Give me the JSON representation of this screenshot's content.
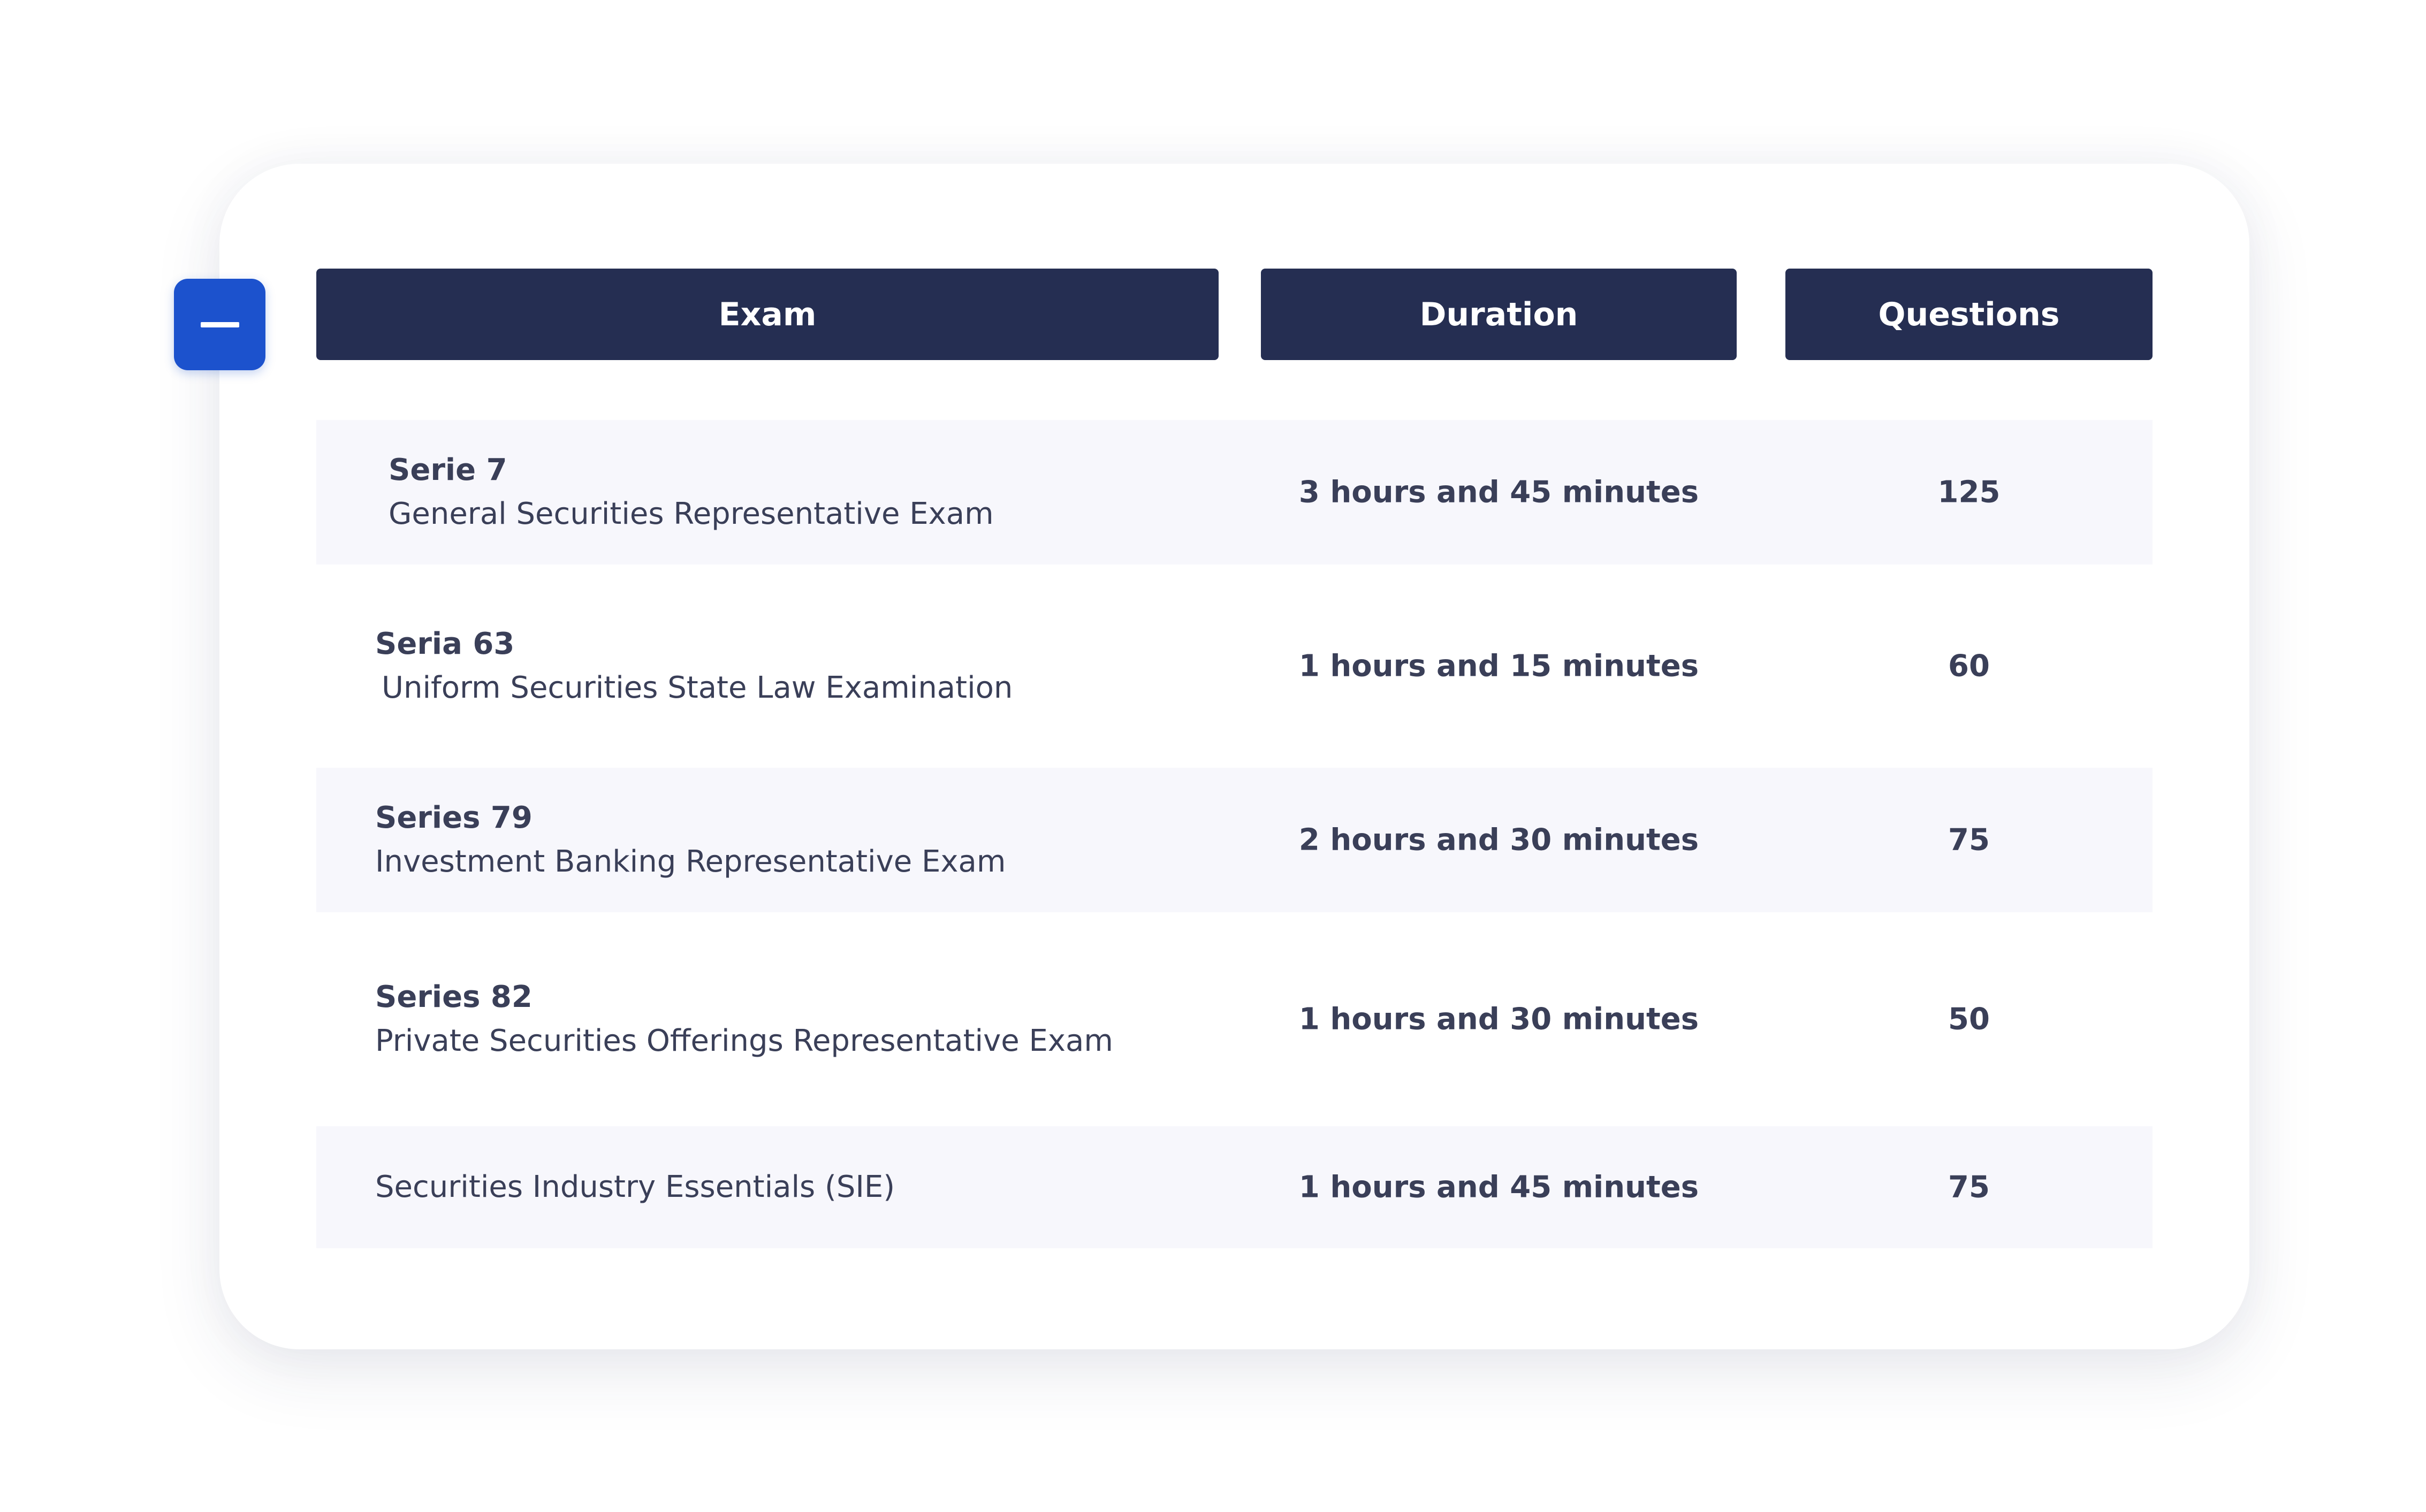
{
  "collapse_button": {
    "icon": "minus-icon",
    "color": "#1c52cd"
  },
  "table": {
    "header_color": "#252e52",
    "columns": [
      "Exam",
      "Duration",
      "Questions"
    ],
    "rows": [
      {
        "code": "Serie 7",
        "name": "General Securities Representative Exam",
        "duration": "3 hours and 45 minutes",
        "questions": "125"
      },
      {
        "code": "Seria 63",
        "name": "Uniform Securities State Law Examination",
        "duration": "1 hours and 15 minutes",
        "questions": "60"
      },
      {
        "code": "Series 79",
        "name": "Investment Banking Representative Exam",
        "duration": "2 hours and 30 minutes",
        "questions": "75"
      },
      {
        "code": "Series 82",
        "name": "Private Securities Offerings Representative Exam",
        "duration": "1 hours and 30 minutes",
        "questions": "50"
      },
      {
        "name": "Securities Industry Essentials (SIE)",
        "duration": "1 hours and 45 minutes",
        "questions": "75"
      }
    ]
  }
}
